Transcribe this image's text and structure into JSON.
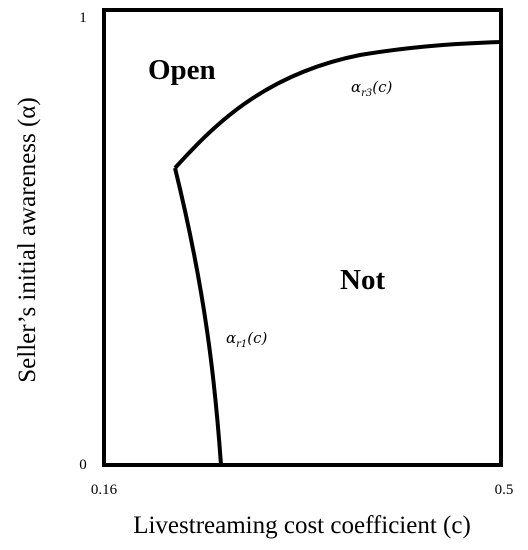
{
  "axes": {
    "x_label": "Livestreaming cost coefficient (c)",
    "y_label": "Seller’s initial awareness (α)",
    "x_ticks": [
      "0.16",
      "0.5"
    ],
    "y_ticks": [
      "0",
      "1"
    ]
  },
  "regions": {
    "upper": "Open",
    "lower": "Not"
  },
  "curves": {
    "r1": {
      "greek": "α",
      "subscript": "r1",
      "arg": "(c)"
    },
    "r3": {
      "greek": "α",
      "subscript": "r3",
      "arg": "(c)"
    }
  },
  "colors": {
    "line": "#000000",
    "background": "#ffffff"
  }
}
